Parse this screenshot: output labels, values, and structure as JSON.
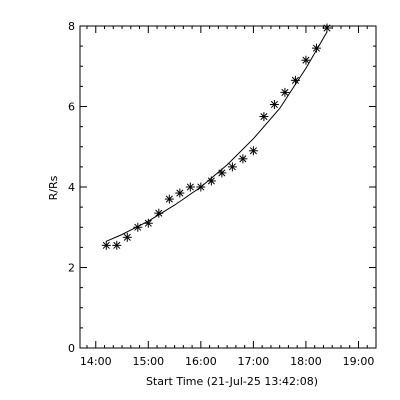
{
  "chart_data": {
    "type": "scatter",
    "title": "",
    "xlabel": "Start Time (21-Jul-25 13:42:08)",
    "ylabel": "R/Rs",
    "xlim": [
      "13:42",
      "19:20"
    ],
    "ylim": [
      0,
      8
    ],
    "x_ticks": [
      "14:00",
      "15:00",
      "16:00",
      "17:00",
      "18:00",
      "19:00"
    ],
    "y_ticks": [
      "0",
      "2",
      "4",
      "6",
      "8"
    ],
    "grid": false,
    "legend": "none",
    "colors": {
      "axis": "#000000",
      "points": "#000000",
      "fit": "#000000"
    },
    "series": [
      {
        "marker": "asterisk",
        "x": [
          "14:12",
          "14:24",
          "14:36",
          "14:48",
          "15:00",
          "15:12",
          "15:24",
          "15:36",
          "15:48",
          "16:00",
          "16:12",
          "16:24",
          "16:36",
          "16:48",
          "17:00",
          "17:12",
          "17:24",
          "17:36",
          "17:48",
          "18:00",
          "18:12",
          "18:24"
        ],
        "y": [
          2.55,
          2.55,
          2.75,
          3.0,
          3.1,
          3.35,
          3.7,
          3.85,
          4.0,
          4.0,
          4.15,
          4.35,
          4.5,
          4.7,
          4.9,
          5.75,
          6.05,
          6.35,
          6.65,
          7.15,
          7.45,
          7.95
        ]
      },
      {
        "style": "line",
        "x": [
          "14:12",
          "14:30",
          "15:00",
          "15:30",
          "16:00",
          "16:30",
          "17:00",
          "17:30",
          "18:00",
          "18:24"
        ],
        "y": [
          2.65,
          2.82,
          3.15,
          3.55,
          4.0,
          4.55,
          5.2,
          5.95,
          6.95,
          7.85
        ]
      }
    ]
  }
}
